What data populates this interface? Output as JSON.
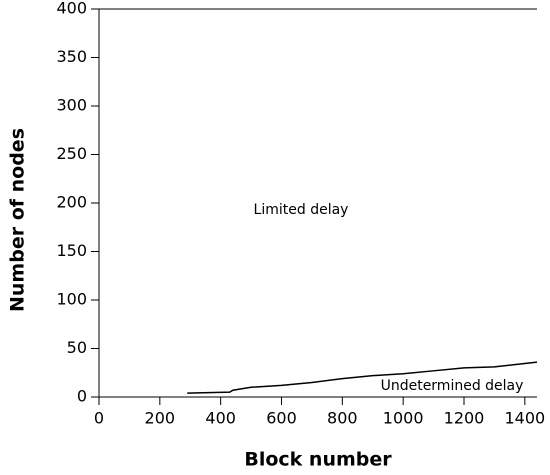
{
  "chart_data": {
    "type": "line",
    "x_label": "Block number",
    "y_label": "Number of nodes",
    "annotations": [
      "Limited delay",
      "Undetermined delay"
    ],
    "x": [
      290,
      430,
      440,
      500,
      600,
      700,
      800,
      900,
      1000,
      1100,
      1200,
      1300,
      1440
    ],
    "values": [
      4,
      5,
      7,
      10,
      12,
      15,
      19,
      22,
      24,
      27,
      30,
      31,
      36
    ],
    "color": "#000000",
    "xlim": [
      0,
      1440
    ],
    "xticks": [
      0,
      200,
      400,
      600,
      800,
      1000,
      1200,
      1400
    ],
    "ylim": [
      0,
      400
    ],
    "yticks": [
      0,
      50,
      100,
      150,
      200,
      250,
      300,
      350,
      400
    ],
    "grid": false
  }
}
